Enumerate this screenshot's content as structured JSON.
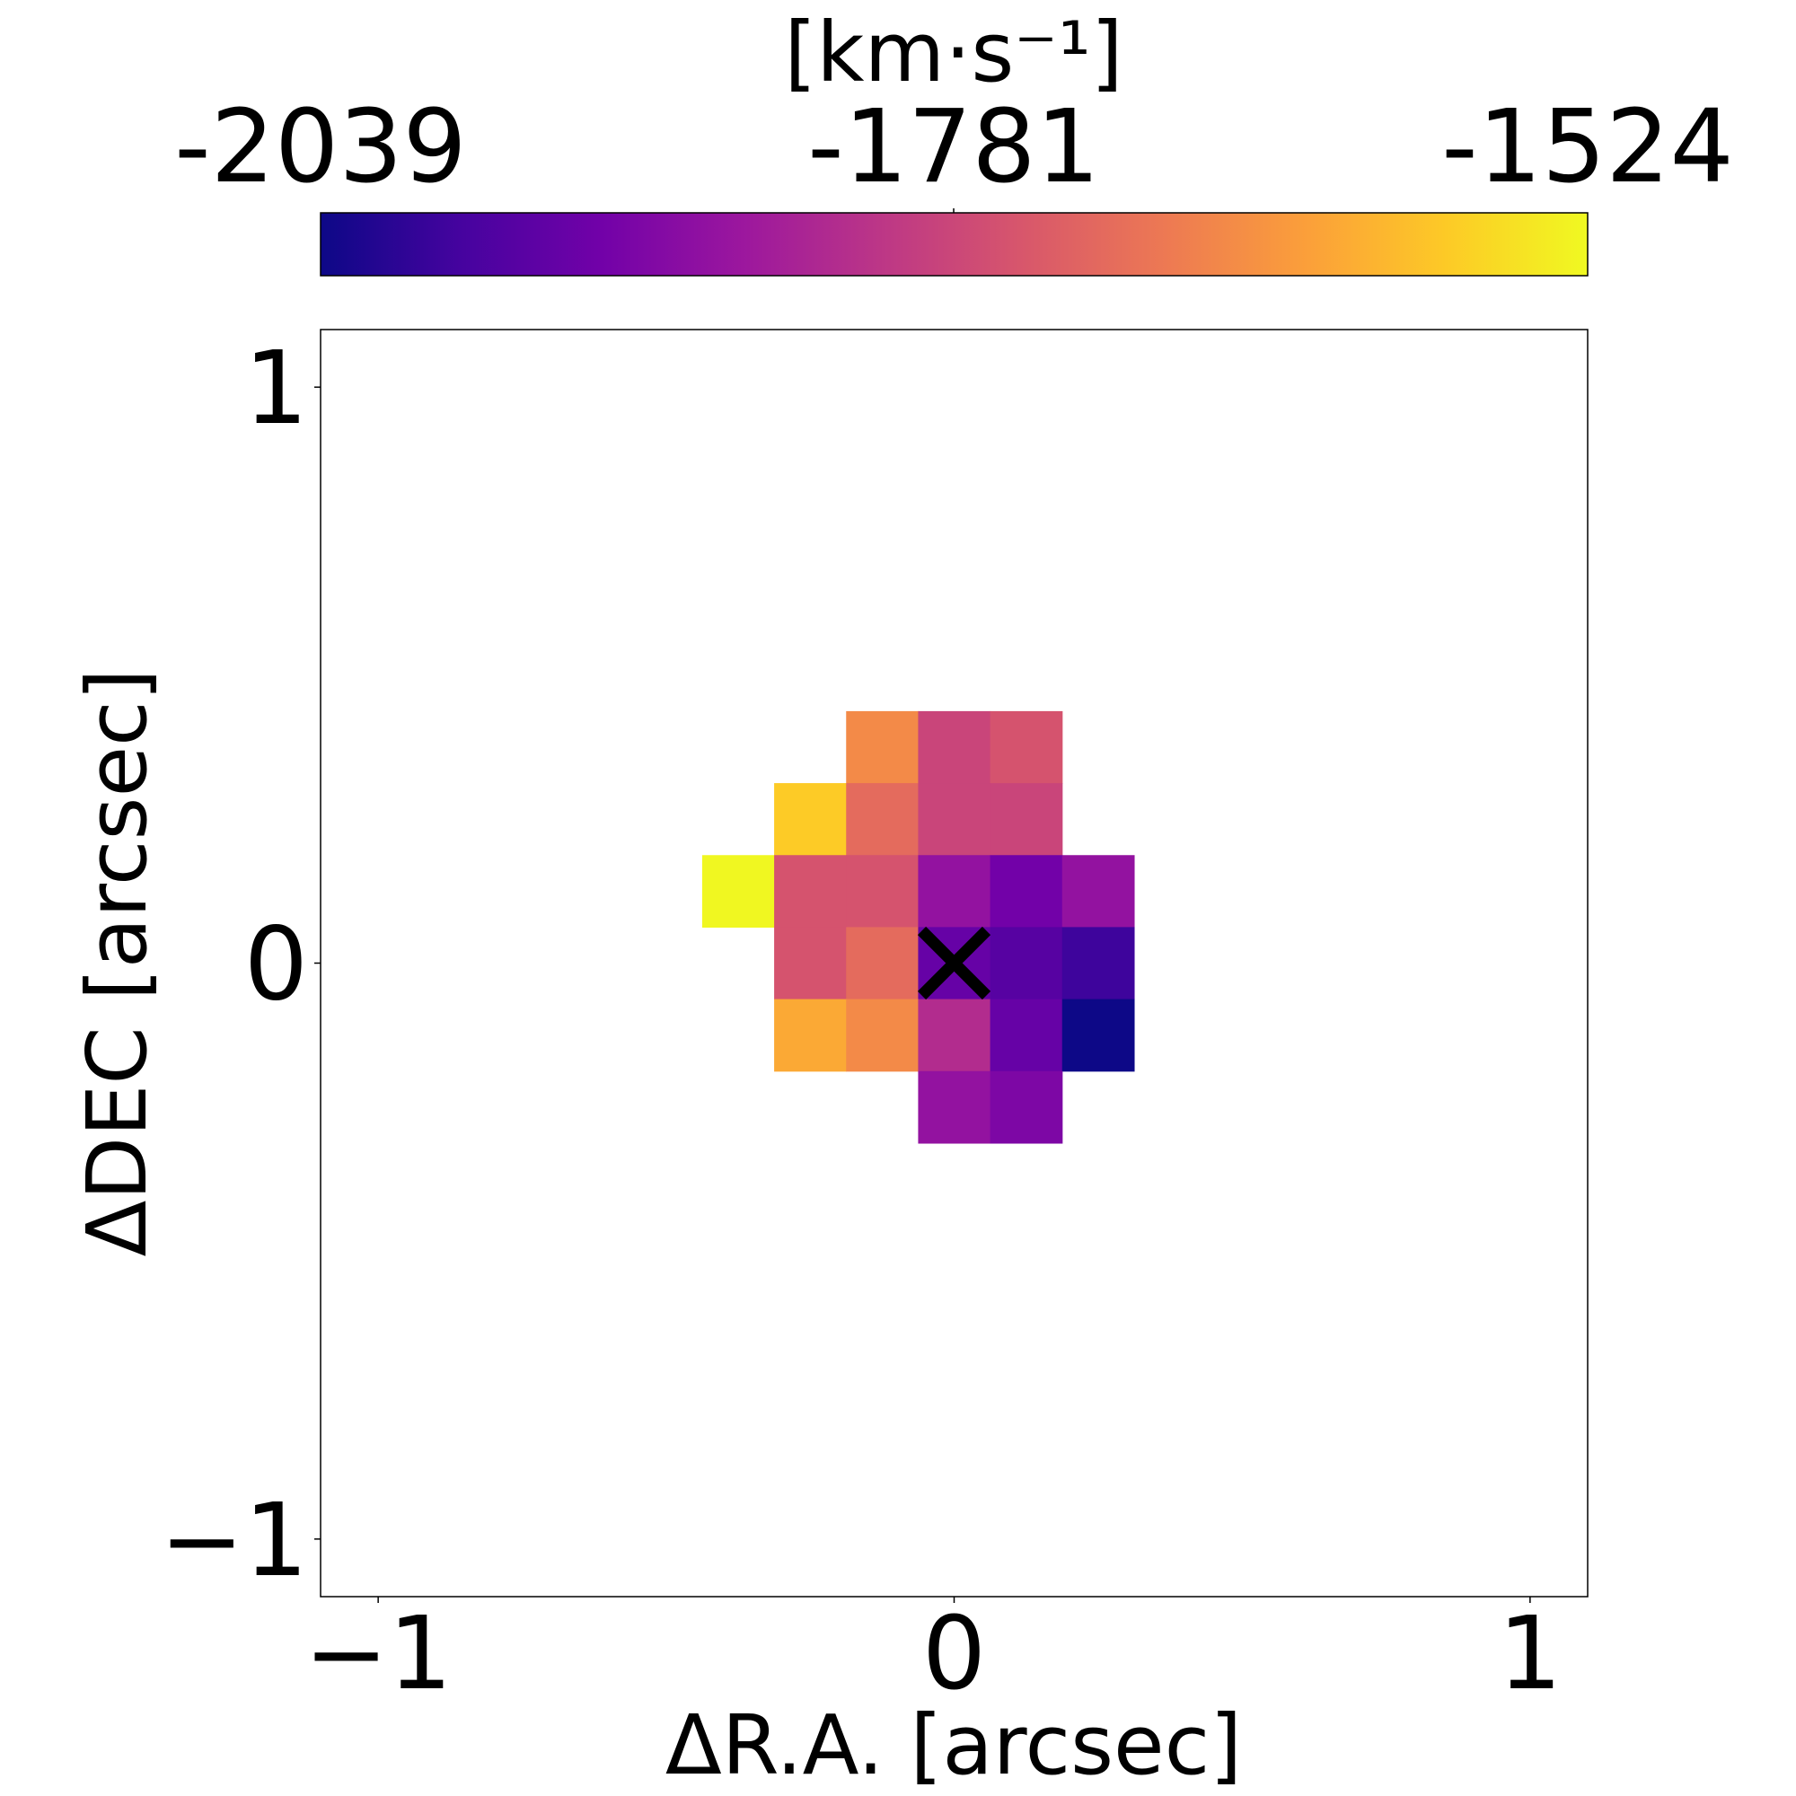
{
  "colorbar": {
    "unit_label": "[km·s⁻¹]",
    "tick_labels": [
      "-2039",
      "-1781",
      "-1524"
    ],
    "vmin": -2039,
    "vmax": -1524,
    "colormap": [
      "#0d0887",
      "#46039f",
      "#7201a8",
      "#9c179e",
      "#bd3786",
      "#d8576b",
      "#ed7953",
      "#fb9f3a",
      "#fdca26",
      "#f0f921"
    ]
  },
  "chart_data": {
    "type": "heatmap",
    "xlabel": "ΔR.A. [arcsec]",
    "ylabel": "ΔDEC [arcsec]",
    "xlim": [
      -1.1,
      1.1
    ],
    "ylim": [
      -1.1,
      1.1
    ],
    "x_ticks": [
      -1,
      0,
      1
    ],
    "x_tick_labels": [
      "−1",
      "0",
      "1"
    ],
    "y_ticks": [
      -1,
      0,
      1
    ],
    "y_tick_labels": [
      "−1",
      "0",
      "1"
    ],
    "grid": false,
    "pixel_scale_arcsec": 0.125,
    "pixels": [
      {
        "x": -0.125,
        "y": 0.375,
        "v": -1670
      },
      {
        "x": 0.0,
        "y": 0.375,
        "v": -1785
      },
      {
        "x": 0.125,
        "y": 0.375,
        "v": -1760
      },
      {
        "x": -0.25,
        "y": 0.25,
        "v": -1580
      },
      {
        "x": -0.125,
        "y": 0.25,
        "v": -1720
      },
      {
        "x": 0.0,
        "y": 0.25,
        "v": -1785
      },
      {
        "x": 0.125,
        "y": 0.25,
        "v": -1785
      },
      {
        "x": -0.375,
        "y": 0.125,
        "v": -1526
      },
      {
        "x": -0.25,
        "y": 0.125,
        "v": -1760
      },
      {
        "x": -0.125,
        "y": 0.125,
        "v": -1760
      },
      {
        "x": 0.0,
        "y": 0.125,
        "v": -1880
      },
      {
        "x": 0.125,
        "y": 0.125,
        "v": -1925
      },
      {
        "x": 0.25,
        "y": 0.125,
        "v": -1880
      },
      {
        "x": -0.25,
        "y": 0.0,
        "v": -1760
      },
      {
        "x": -0.125,
        "y": 0.0,
        "v": -1720
      },
      {
        "x": 0.0,
        "y": 0.0,
        "v": -1940
      },
      {
        "x": 0.125,
        "y": 0.0,
        "v": -1960
      },
      {
        "x": 0.25,
        "y": 0.0,
        "v": -1990
      },
      {
        "x": -0.25,
        "y": -0.125,
        "v": -1625
      },
      {
        "x": -0.125,
        "y": -0.125,
        "v": -1670
      },
      {
        "x": 0.0,
        "y": -0.125,
        "v": -1830
      },
      {
        "x": 0.125,
        "y": -0.125,
        "v": -1940
      },
      {
        "x": 0.25,
        "y": -0.125,
        "v": -2039
      },
      {
        "x": 0.0,
        "y": -0.25,
        "v": -1880
      },
      {
        "x": 0.125,
        "y": -0.25,
        "v": -1910
      }
    ],
    "marker": {
      "symbol": "×",
      "x": 0,
      "y": 0,
      "color": "#000000"
    }
  }
}
